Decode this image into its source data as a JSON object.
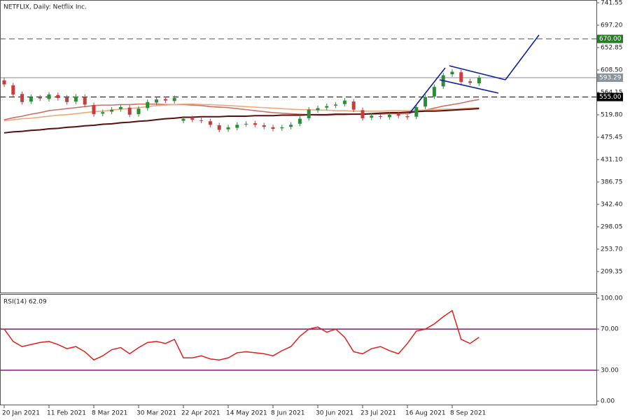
{
  "chart_data": [
    {
      "type": "candlestick",
      "title": "NETFLIX, Daily:  Netflix Inc.",
      "categories": [
        "20 Jan 2021",
        null,
        null,
        null,
        null,
        "11 Feb 2021",
        null,
        null,
        null,
        null,
        "8 Mar 2021",
        null,
        null,
        null,
        null,
        "30 Mar 2021",
        null,
        null,
        null,
        null,
        "22 Apr 2021",
        null,
        null,
        null,
        null,
        "14 May 2021",
        null,
        null,
        null,
        null,
        "8 Jun 2021",
        null,
        null,
        null,
        null,
        "30 Jun 2021",
        null,
        null,
        null,
        null,
        "23 Jul 2021",
        null,
        null,
        null,
        null,
        "16 Aug 2021",
        null,
        null,
        null,
        null,
        "8 Sep 2021",
        null,
        null,
        null
      ],
      "open": [
        588,
        578,
        561,
        546,
        554,
        551,
        559,
        554,
        546,
        555,
        539,
        522,
        526,
        531,
        534,
        521,
        533,
        544,
        551,
        547,
        508,
        513,
        509,
        507,
        499,
        491,
        494,
        501,
        503,
        499,
        495,
        493,
        496,
        502,
        513,
        529,
        534,
        538,
        541,
        546,
        529,
        514,
        517,
        515,
        521,
        517,
        516,
        536,
        556,
        576,
        600,
        604,
        586,
        582
      ],
      "high": [
        593,
        583,
        566,
        560,
        559,
        565,
        564,
        559,
        561,
        560,
        544,
        530,
        535,
        540,
        539,
        537,
        550,
        555,
        556,
        558,
        517,
        518,
        514,
        512,
        504,
        500,
        505,
        507,
        508,
        504,
        500,
        500,
        505,
        517,
        535,
        538,
        542,
        545,
        553,
        551,
        534,
        523,
        522,
        525,
        526,
        522,
        540,
        560,
        580,
        603,
        610,
        609,
        591,
        598
      ],
      "low": [
        575,
        555,
        540,
        541,
        547,
        546,
        548,
        540,
        541,
        535,
        516,
        517,
        521,
        526,
        515,
        516,
        528,
        539,
        543,
        542,
        503,
        505,
        503,
        495,
        485,
        486,
        489,
        496,
        495,
        491,
        487,
        488,
        491,
        497,
        508,
        524,
        529,
        533,
        536,
        525,
        508,
        509,
        511,
        510,
        513,
        510,
        511,
        531,
        551,
        571,
        595,
        580,
        578,
        577
      ],
      "close": [
        580,
        560,
        545,
        555,
        552,
        560,
        553,
        545,
        556,
        540,
        521,
        525,
        530,
        535,
        520,
        532,
        545,
        550,
        548,
        553,
        512,
        510,
        508,
        500,
        490,
        495,
        500,
        502,
        500,
        496,
        492,
        495,
        500,
        512,
        530,
        533,
        537,
        540,
        548,
        530,
        513,
        518,
        516,
        520,
        518,
        515,
        535,
        555,
        575,
        598,
        605,
        585,
        583,
        593.29
      ],
      "up_color": "#2e8b3a",
      "down_color": "#c83c3c",
      "series": [
        {
          "type": "line",
          "color": "#c9716a",
          "values": [
            510,
            514,
            517,
            521,
            524,
            528,
            530,
            532,
            534,
            536,
            538,
            539,
            539,
            540,
            540,
            541,
            541,
            541,
            540,
            540,
            540,
            539,
            538,
            536,
            535,
            534,
            532,
            530,
            528,
            526,
            524,
            523,
            522,
            521,
            520,
            519,
            519,
            520,
            520,
            521,
            521,
            521,
            521,
            522,
            522,
            522,
            526,
            529,
            533,
            537,
            540,
            543,
            547,
            550
          ]
        },
        {
          "type": "line",
          "color": "#f0a77a",
          "values": [
            508,
            510,
            512,
            513,
            515,
            517,
            519,
            520,
            522,
            524,
            526,
            527,
            529,
            531,
            532,
            534,
            536,
            538,
            539,
            540,
            541,
            541,
            540,
            540,
            539,
            538,
            537,
            536,
            535,
            534,
            533,
            532,
            531,
            530,
            530,
            529,
            529,
            528,
            528,
            527,
            527,
            527,
            527,
            528,
            528,
            528,
            529,
            529,
            530,
            531,
            531,
            532,
            533,
            534
          ]
        },
        {
          "type": "line",
          "color": "#5a0f0f",
          "values": [
            484,
            486,
            487,
            489,
            490,
            492,
            493,
            495,
            496,
            498,
            499,
            501,
            502,
            504,
            505,
            507,
            508,
            510,
            512,
            513,
            515,
            515,
            516,
            516,
            516,
            517,
            517,
            517,
            518,
            518,
            518,
            519,
            519,
            519,
            520,
            520,
            520,
            521,
            521,
            521,
            521,
            522,
            523,
            524,
            524,
            525,
            526,
            527,
            527,
            528,
            529,
            530,
            531,
            532
          ]
        }
      ],
      "levels": [
        {
          "value": 670,
          "label": "670.00",
          "color": "#2a7a2a",
          "dashed": true
        },
        {
          "value": 555,
          "label": "555.00",
          "color": "#000000",
          "dashed": true
        },
        {
          "value": 593.29,
          "label": "593.29",
          "color": "#8a929a",
          "dashed": false
        }
      ],
      "ylim": [
        167.7,
        747.1
      ],
      "yticks": [
        741.55,
        {
          "value": 697.2,
          "label": "697.20"
        },
        652.85,
        {
          "value": 608.5,
          "label": "608.50"
        },
        564.15,
        {
          "value": 519.8,
          "label": "519.80"
        },
        475.45,
        {
          "value": 431.1,
          "label": "431.10"
        },
        386.75,
        {
          "value": 342.4,
          "label": "342.40"
        },
        298.05,
        {
          "value": 253.7,
          "label": "253.70"
        },
        209.35
      ]
    },
    {
      "type": "line",
      "title": "RSI(14) 62.09",
      "color": "#e0201c",
      "values": [
        70,
        58,
        53,
        55,
        57,
        58,
        55,
        51,
        53,
        48,
        40,
        44,
        50,
        52,
        46,
        52,
        57,
        58,
        56,
        60,
        42,
        42,
        44,
        41,
        40,
        42,
        47,
        48,
        47,
        46,
        44,
        49,
        53,
        63,
        70,
        72,
        67,
        70,
        62,
        48,
        46,
        51,
        53,
        49,
        46,
        56,
        68,
        70,
        75,
        82,
        88,
        60,
        56,
        62.09
      ],
      "levels": [
        {
          "value": 70,
          "color": "#7a1f7a"
        },
        {
          "value": 30,
          "color": "#7a1f7a"
        }
      ],
      "ylim": [
        -3.4,
        104.1
      ],
      "yticks": [
        {
          "value": 100,
          "label": "100.00"
        },
        {
          "value": 70,
          "label": "70.00"
        },
        {
          "value": 30,
          "label": "30.00"
        },
        {
          "value": 0,
          "label": "0.00"
        }
      ]
    }
  ]
}
